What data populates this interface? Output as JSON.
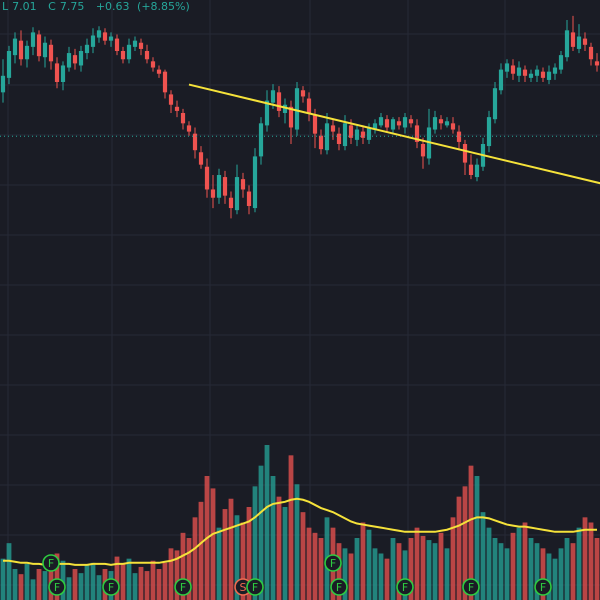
{
  "ohlc": {
    "low_label": "L",
    "low_value": "7.01",
    "close_label": "C",
    "close_value": "7.75",
    "change": "+0.63",
    "change_pct": "(+8.85%)"
  },
  "colors": {
    "background": "#1a1c25",
    "grid": "#262a36",
    "up": "#26a69a",
    "down": "#ef5350",
    "trendline": "#f5e23a",
    "ma_line": "#f5e23a",
    "price_line": "#26a69a"
  },
  "chart_data": {
    "type": "candlestick",
    "candles": [
      [
        230,
        246,
        220,
        262
      ],
      [
        244,
        270,
        238,
        275
      ],
      [
        266,
        282,
        258,
        288
      ],
      [
        280,
        262,
        256,
        290
      ],
      [
        262,
        275,
        254,
        280
      ],
      [
        274,
        288,
        266,
        293
      ],
      [
        286,
        265,
        260,
        290
      ],
      [
        264,
        278,
        254,
        284
      ],
      [
        276,
        260,
        252,
        281
      ],
      [
        258,
        240,
        234,
        264
      ],
      [
        240,
        256,
        232,
        260
      ],
      [
        254,
        268,
        250,
        274
      ],
      [
        266,
        258,
        252,
        272
      ],
      [
        256,
        270,
        250,
        275
      ],
      [
        268,
        276,
        262,
        282
      ],
      [
        274,
        285,
        268,
        292
      ],
      [
        283,
        290,
        278,
        294
      ],
      [
        288,
        280,
        276,
        292
      ],
      [
        280,
        284,
        274,
        288
      ],
      [
        282,
        270,
        266,
        286
      ],
      [
        270,
        262,
        258,
        274
      ],
      [
        262,
        276,
        258,
        282
      ],
      [
        274,
        280,
        270,
        284
      ],
      [
        278,
        272,
        266,
        282
      ],
      [
        270,
        262,
        258,
        276
      ],
      [
        260,
        254,
        250,
        264
      ],
      [
        252,
        248,
        244,
        256
      ],
      [
        250,
        230,
        224,
        252
      ],
      [
        228,
        218,
        210,
        232
      ],
      [
        216,
        212,
        206,
        222
      ],
      [
        210,
        200,
        194,
        214
      ],
      [
        198,
        192,
        188,
        202
      ],
      [
        190,
        174,
        166,
        196
      ],
      [
        172,
        160,
        156,
        178
      ],
      [
        158,
        136,
        128,
        166
      ],
      [
        136,
        128,
        118,
        150
      ],
      [
        128,
        150,
        122,
        156
      ],
      [
        148,
        130,
        122,
        154
      ],
      [
        128,
        118,
        108,
        134
      ],
      [
        116,
        148,
        112,
        160
      ],
      [
        146,
        136,
        128,
        152
      ],
      [
        134,
        120,
        112,
        140
      ],
      [
        118,
        168,
        114,
        176
      ],
      [
        168,
        200,
        160,
        206
      ],
      [
        198,
        222,
        192,
        232
      ],
      [
        220,
        232,
        214,
        238
      ],
      [
        230,
        212,
        206,
        236
      ],
      [
        210,
        218,
        200,
        224
      ],
      [
        216,
        196,
        180,
        222
      ],
      [
        194,
        234,
        188,
        240
      ],
      [
        232,
        226,
        220,
        236
      ],
      [
        224,
        210,
        202,
        230
      ],
      [
        208,
        190,
        176,
        214
      ],
      [
        188,
        175,
        170,
        194
      ],
      [
        174,
        200,
        170,
        210
      ],
      [
        198,
        192,
        184,
        204
      ],
      [
        190,
        180,
        174,
        196
      ],
      [
        178,
        200,
        174,
        208
      ],
      [
        198,
        186,
        180,
        204
      ],
      [
        184,
        194,
        178,
        198
      ],
      [
        192,
        186,
        180,
        198
      ],
      [
        184,
        196,
        180,
        200
      ],
      [
        194,
        200,
        190,
        204
      ],
      [
        198,
        206,
        196,
        210
      ],
      [
        204,
        196,
        192,
        208
      ],
      [
        194,
        204,
        190,
        206
      ],
      [
        202,
        198,
        194,
        206
      ],
      [
        196,
        206,
        190,
        210
      ],
      [
        204,
        200,
        196,
        208
      ],
      [
        198,
        182,
        176,
        204
      ],
      [
        180,
        168,
        156,
        186
      ],
      [
        166,
        196,
        160,
        214
      ],
      [
        194,
        206,
        190,
        212
      ],
      [
        204,
        200,
        194,
        208
      ],
      [
        198,
        202,
        196,
        206
      ],
      [
        200,
        194,
        190,
        206
      ],
      [
        192,
        182,
        174,
        198
      ],
      [
        180,
        162,
        150,
        184
      ],
      [
        160,
        150,
        146,
        170
      ],
      [
        148,
        160,
        144,
        166
      ],
      [
        158,
        180,
        154,
        186
      ],
      [
        178,
        206,
        172,
        212
      ],
      [
        204,
        234,
        200,
        240
      ],
      [
        232,
        252,
        228,
        258
      ],
      [
        250,
        258,
        244,
        262
      ],
      [
        256,
        248,
        242,
        262
      ],
      [
        246,
        254,
        240,
        260
      ],
      [
        252,
        246,
        240,
        256
      ],
      [
        244,
        248,
        240,
        252
      ],
      [
        246,
        252,
        240,
        256
      ],
      [
        250,
        244,
        240,
        254
      ],
      [
        242,
        250,
        238,
        256
      ],
      [
        248,
        254,
        242,
        258
      ],
      [
        252,
        266,
        248,
        270
      ],
      [
        264,
        290,
        260,
        300
      ],
      [
        288,
        274,
        270,
        304
      ],
      [
        272,
        284,
        268,
        296
      ],
      [
        282,
        276,
        270,
        288
      ],
      [
        274,
        262,
        256,
        278
      ],
      [
        260,
        256,
        250,
        268
      ]
    ],
    "volumes": [
      40,
      55,
      30,
      25,
      35,
      20,
      30,
      28,
      32,
      45,
      38,
      22,
      30,
      26,
      34,
      36,
      24,
      30,
      28,
      42,
      35,
      40,
      26,
      32,
      28,
      38,
      30,
      36,
      50,
      48,
      65,
      60,
      80,
      95,
      120,
      108,
      70,
      88,
      98,
      82,
      75,
      90,
      110,
      130,
      150,
      120,
      100,
      90,
      140,
      112,
      85,
      70,
      65,
      60,
      80,
      70,
      55,
      50,
      45,
      60,
      75,
      68,
      50,
      45,
      40,
      60,
      55,
      48,
      60,
      70,
      62,
      58,
      55,
      65,
      50,
      80,
      100,
      110,
      130,
      120,
      85,
      70,
      60,
      55,
      50,
      65,
      70,
      75,
      60,
      55,
      50,
      45,
      40,
      50,
      60,
      55,
      70,
      80,
      75,
      60
    ],
    "volume_ma": [
      38,
      38,
      37,
      36,
      36,
      35,
      35,
      34,
      34,
      35,
      35,
      35,
      34,
      34,
      34,
      35,
      35,
      35,
      34,
      35,
      35,
      36,
      36,
      36,
      36,
      36,
      36,
      37,
      38,
      40,
      43,
      46,
      50,
      55,
      60,
      64,
      66,
      68,
      70,
      72,
      74,
      76,
      80,
      85,
      90,
      93,
      94,
      95,
      97,
      98,
      97,
      95,
      92,
      89,
      87,
      85,
      82,
      79,
      76,
      74,
      73,
      72,
      71,
      70,
      69,
      68,
      67,
      66,
      66,
      66,
      66,
      66,
      66,
      67,
      68,
      70,
      72,
      75,
      78,
      80,
      80,
      79,
      77,
      75,
      73,
      72,
      71,
      71,
      70,
      69,
      68,
      67,
      66,
      66,
      66,
      66,
      67,
      68,
      68,
      68
    ],
    "markers": [
      {
        "label": "F",
        "kind": "F"
      },
      {
        "label": "F",
        "kind": "F"
      },
      {
        "label": "F",
        "kind": "F"
      },
      {
        "label": "F",
        "kind": "F"
      },
      {
        "label": "S",
        "kind": "S"
      },
      {
        "label": "F",
        "kind": "F"
      },
      {
        "label": "F",
        "kind": "F"
      },
      {
        "label": "F",
        "kind": "F"
      },
      {
        "label": "F",
        "kind": "F"
      },
      {
        "label": "F",
        "kind": "F"
      },
      {
        "label": "F",
        "kind": "F"
      }
    ],
    "marker_bars": [
      8,
      9,
      18,
      30,
      40,
      42,
      55,
      56,
      67,
      78,
      90
    ],
    "marker_rows": [
      1,
      0,
      0,
      0,
      0,
      0,
      1,
      0,
      0,
      0,
      0
    ],
    "trendline": {
      "from_bar": 31,
      "from_price": 7.95,
      "to_bar": 100,
      "to_price": 7.56
    },
    "last_price": 7.75
  }
}
